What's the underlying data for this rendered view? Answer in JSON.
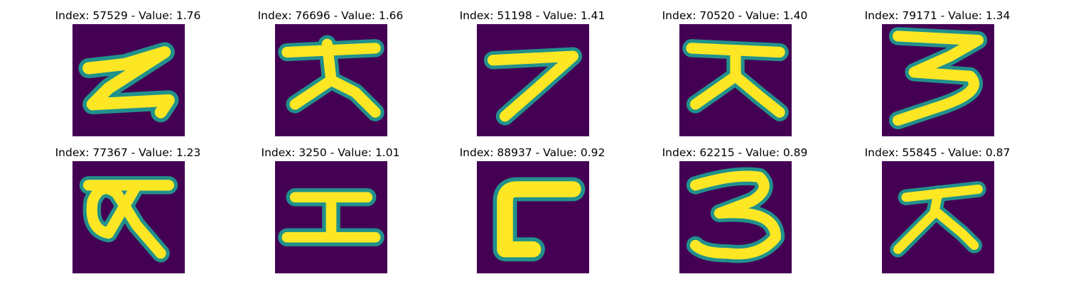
{
  "colors": {
    "background": "#440154",
    "stroke_edge": "#20908c",
    "stroke_mid": "#5dc863",
    "stroke_core": "#fde725"
  },
  "panels": [
    {
      "index": "57529",
      "value": "1.76",
      "title": "Index: 57529 - Value: 1.76",
      "glyph": "zigzag-z-icon"
    },
    {
      "index": "76696",
      "value": "1.66",
      "title": "Index: 76696 - Value: 1.66",
      "glyph": "glyph-da-icon"
    },
    {
      "index": "51198",
      "value": "1.41",
      "title": "Index: 51198 - Value: 1.41",
      "glyph": "digit-seven-icon"
    },
    {
      "index": "70520",
      "value": "1.40",
      "title": "Index: 70520 - Value: 1.40",
      "glyph": "glyph-da-icon"
    },
    {
      "index": "79171",
      "value": "1.34",
      "title": "Index: 79171 - Value: 1.34",
      "glyph": "digit-three-icon"
    },
    {
      "index": "77367",
      "value": "1.23",
      "title": "Index: 77367 - Value: 1.23",
      "glyph": "glyph-loop-icon"
    },
    {
      "index": "3250",
      "value": "1.01",
      "title": "Index: 3250 - Value: 1.01",
      "glyph": "glyph-gong-icon"
    },
    {
      "index": "88937",
      "value": "0.92",
      "title": "Index: 88937 - Value: 0.92",
      "glyph": "glyph-corner-icon"
    },
    {
      "index": "62215",
      "value": "0.89",
      "title": "Index: 62215 - Value: 0.89",
      "glyph": "digit-three-icon"
    },
    {
      "index": "55845",
      "value": "0.87",
      "title": "Index: 55845 - Value: 0.87",
      "glyph": "glyph-da-icon"
    }
  ]
}
